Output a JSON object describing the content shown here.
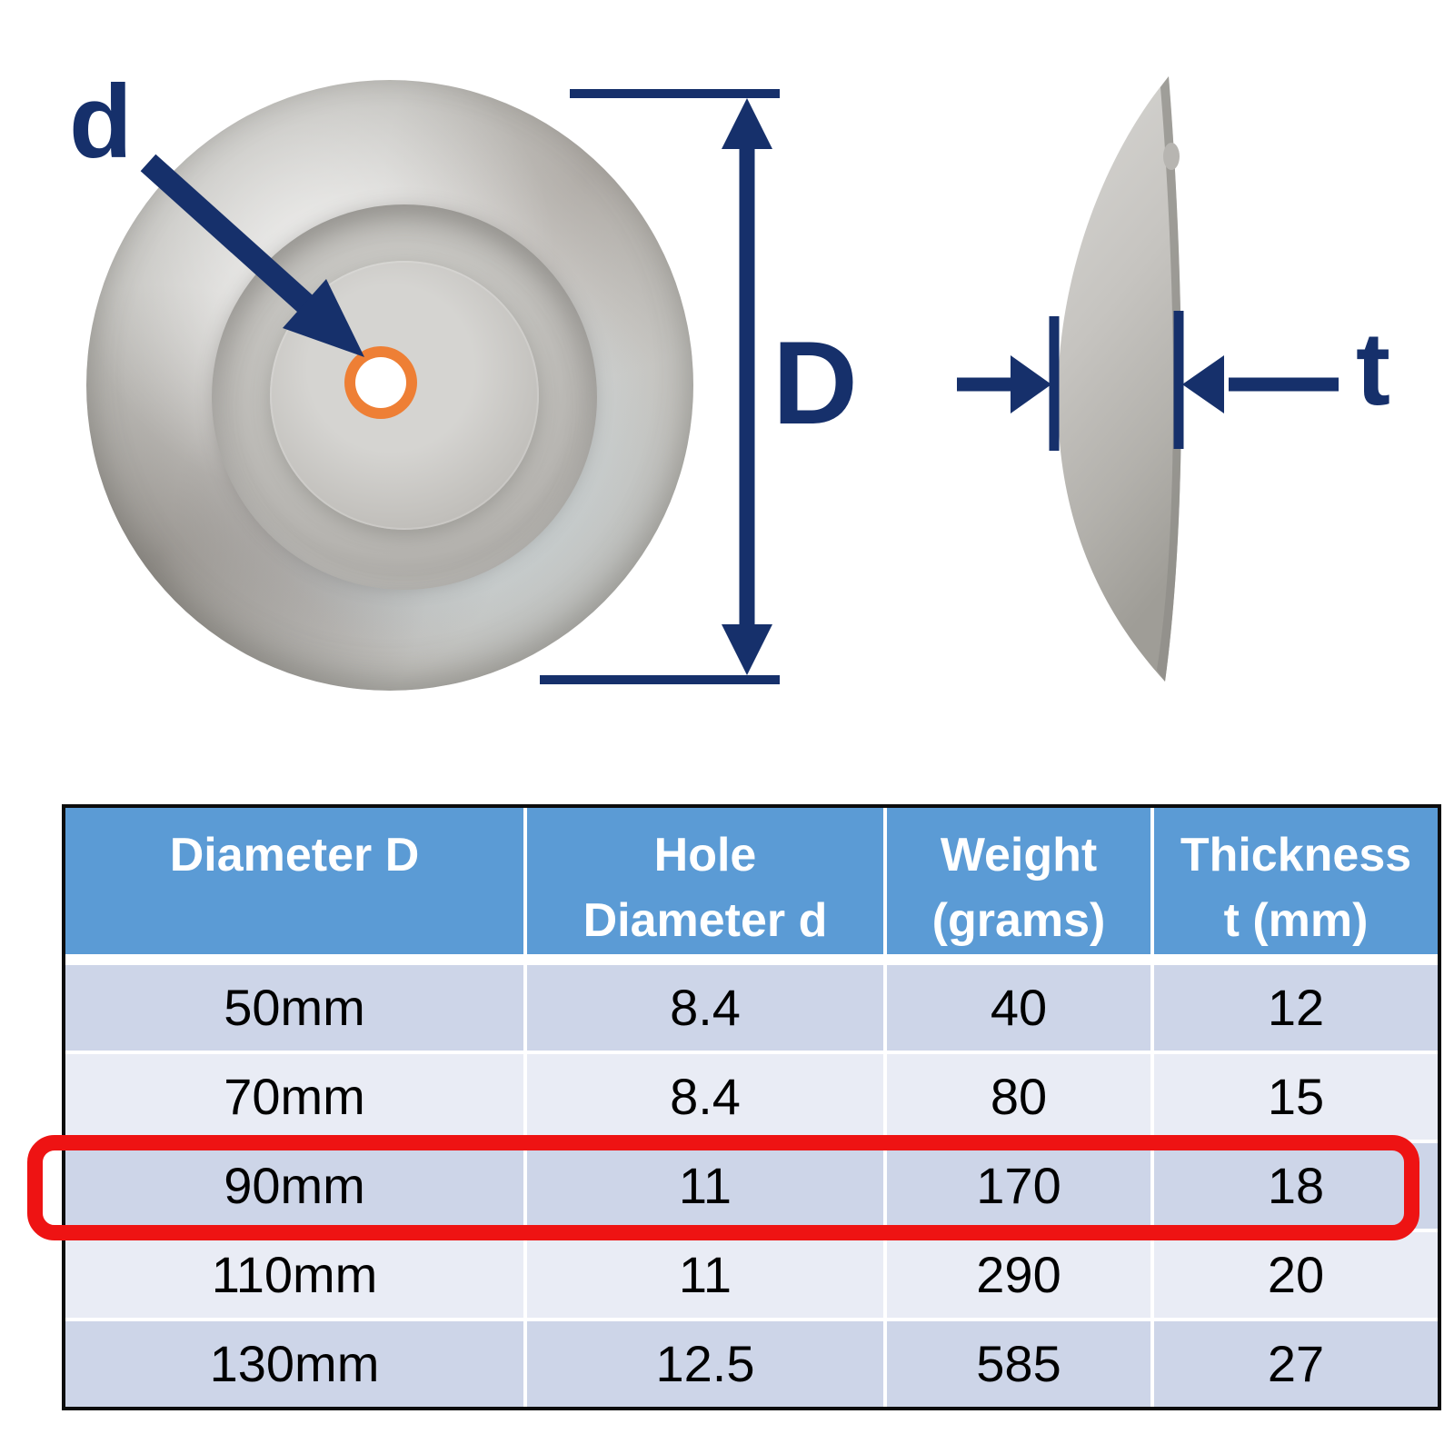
{
  "diagram": {
    "labels": {
      "hole_diameter": "d",
      "outer_diameter": "D",
      "thickness": "t"
    }
  },
  "table": {
    "columns": [
      "Diameter D",
      "Hole\nDiameter d",
      "Weight\n(grams)",
      "Thickness\nt (mm)"
    ],
    "rows": [
      [
        "50mm",
        "8.4",
        "40",
        "12"
      ],
      [
        "70mm",
        "8.4",
        "80",
        "15"
      ],
      [
        "90mm",
        "11",
        "170",
        "18"
      ],
      [
        "110mm",
        "11",
        "290",
        "20"
      ],
      [
        "130mm",
        "12.5",
        "585",
        "27"
      ]
    ],
    "highlighted_row_index": 2,
    "highlighted_row_label": "90mm"
  },
  "colors": {
    "header_blue": "#5b9bd5",
    "row_dark": "#cdd5e8",
    "row_light": "#e9ecf5",
    "annotation_navy": "#16306b",
    "highlight_orange": "#ee7f35",
    "highlight_red": "#ee1313",
    "table_border": "#0c0c0c",
    "cell_text": "#000000"
  }
}
